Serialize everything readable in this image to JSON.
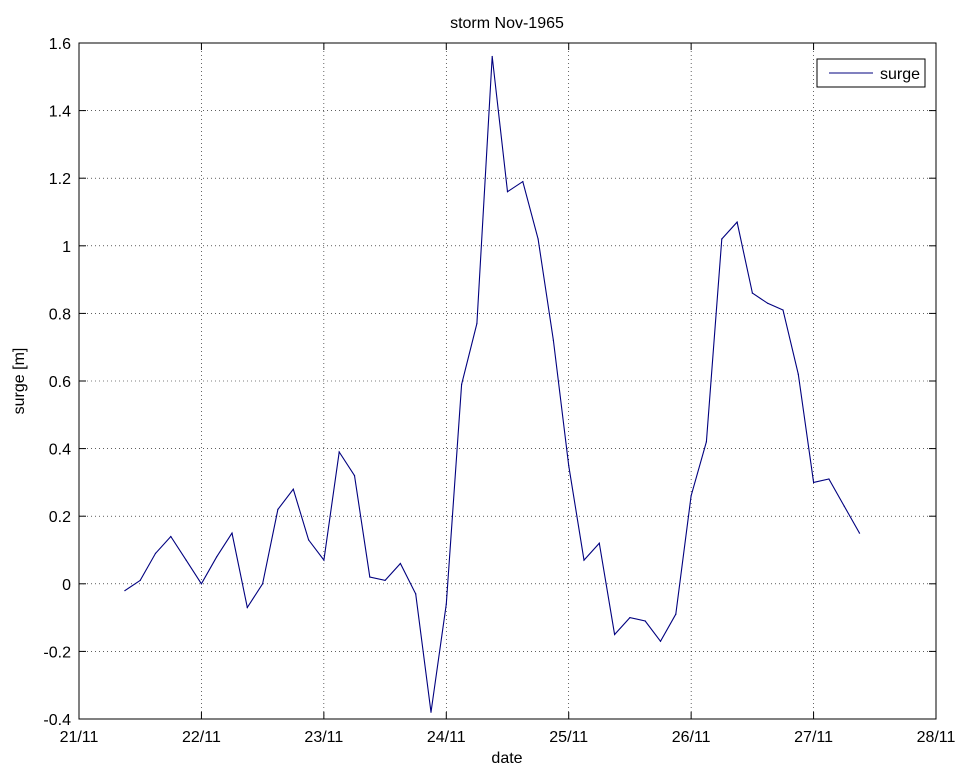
{
  "chart_data": {
    "type": "line",
    "title": "storm Nov-1965",
    "xlabel": "date",
    "ylabel": "surge [m]",
    "x_ticks": [
      "21/11",
      "22/11",
      "23/11",
      "24/11",
      "25/11",
      "26/11",
      "27/11",
      "28/11"
    ],
    "y_ticks": [
      "-0.4",
      "-0.2",
      "0",
      "0.2",
      "0.4",
      "0.6",
      "0.8",
      "1",
      "1.2",
      "1.4",
      "1.6"
    ],
    "xlim": [
      "21/11 00:00",
      "28/11 00:00"
    ],
    "ylim": [
      -0.4,
      1.6
    ],
    "grid": true,
    "legend_position": "top-right",
    "series": [
      {
        "name": "surge",
        "color": "#00007f",
        "points": [
          {
            "t": "21/11 09:00",
            "y": -0.02
          },
          {
            "t": "21/11 12:00",
            "y": 0.01
          },
          {
            "t": "21/11 15:00",
            "y": 0.09
          },
          {
            "t": "21/11 18:00",
            "y": 0.14
          },
          {
            "t": "21/11 21:00",
            "y": 0.07
          },
          {
            "t": "22/11 00:00",
            "y": 0.0
          },
          {
            "t": "22/11 03:00",
            "y": 0.08
          },
          {
            "t": "22/11 06:00",
            "y": 0.15
          },
          {
            "t": "22/11 09:00",
            "y": -0.07
          },
          {
            "t": "22/11 12:00",
            "y": 0.0
          },
          {
            "t": "22/11 15:00",
            "y": 0.22
          },
          {
            "t": "22/11 18:00",
            "y": 0.28
          },
          {
            "t": "22/11 21:00",
            "y": 0.13
          },
          {
            "t": "23/11 00:00",
            "y": 0.07
          },
          {
            "t": "23/11 03:00",
            "y": 0.39
          },
          {
            "t": "23/11 06:00",
            "y": 0.32
          },
          {
            "t": "23/11 09:00",
            "y": 0.02
          },
          {
            "t": "23/11 12:00",
            "y": 0.01
          },
          {
            "t": "23/11 15:00",
            "y": 0.06
          },
          {
            "t": "23/11 18:00",
            "y": -0.03
          },
          {
            "t": "23/11 21:00",
            "y": -0.38
          },
          {
            "t": "24/11 00:00",
            "y": -0.06
          },
          {
            "t": "24/11 03:00",
            "y": 0.59
          },
          {
            "t": "24/11 06:00",
            "y": 0.77
          },
          {
            "t": "24/11 09:00",
            "y": 1.56
          },
          {
            "t": "24/11 12:00",
            "y": 1.16
          },
          {
            "t": "24/11 15:00",
            "y": 1.19
          },
          {
            "t": "24/11 18:00",
            "y": 1.02
          },
          {
            "t": "24/11 21:00",
            "y": 0.72
          },
          {
            "t": "25/11 00:00",
            "y": 0.35
          },
          {
            "t": "25/11 03:00",
            "y": 0.07
          },
          {
            "t": "25/11 06:00",
            "y": 0.12
          },
          {
            "t": "25/11 09:00",
            "y": -0.15
          },
          {
            "t": "25/11 12:00",
            "y": -0.1
          },
          {
            "t": "25/11 15:00",
            "y": -0.11
          },
          {
            "t": "25/11 18:00",
            "y": -0.17
          },
          {
            "t": "25/11 21:00",
            "y": -0.09
          },
          {
            "t": "26/11 00:00",
            "y": 0.26
          },
          {
            "t": "26/11 03:00",
            "y": 0.42
          },
          {
            "t": "26/11 06:00",
            "y": 1.02
          },
          {
            "t": "26/11 09:00",
            "y": 1.07
          },
          {
            "t": "26/11 12:00",
            "y": 0.86
          },
          {
            "t": "26/11 15:00",
            "y": 0.83
          },
          {
            "t": "26/11 18:00",
            "y": 0.81
          },
          {
            "t": "26/11 21:00",
            "y": 0.62
          },
          {
            "t": "27/11 00:00",
            "y": 0.3
          },
          {
            "t": "27/11 03:00",
            "y": 0.31
          },
          {
            "t": "27/11 06:00",
            "y": 0.23
          },
          {
            "t": "27/11 09:00",
            "y": 0.15
          }
        ]
      }
    ]
  }
}
